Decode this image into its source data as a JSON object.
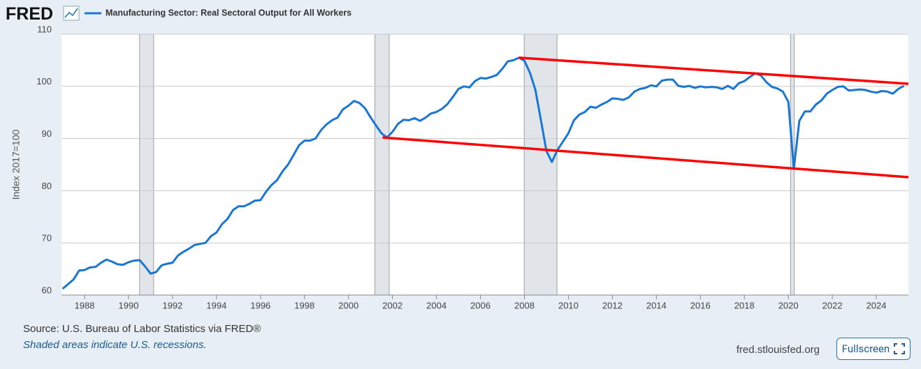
{
  "logo": "FRED",
  "chart_data": {
    "type": "line",
    "title": "Manufacturing Sector: Real Sectoral Output for All Workers",
    "y_label": "Index 2017=100",
    "xlim": [
      1986.95,
      2025.46
    ],
    "ylim": [
      60,
      110
    ],
    "xticks": [
      1988,
      1990,
      1992,
      1994,
      1996,
      1998,
      2000,
      2002,
      2004,
      2006,
      2008,
      2010,
      2012,
      2014,
      2016,
      2018,
      2020,
      2022,
      2024
    ],
    "yticks": [
      60,
      70,
      80,
      90,
      100,
      110
    ],
    "grid": true,
    "recessions": [
      [
        1990.5,
        1991.14
      ],
      [
        2001.2,
        2001.85
      ],
      [
        2007.99,
        2009.48
      ],
      [
        2020.1,
        2020.27
      ]
    ],
    "series": [
      {
        "name": "Manufacturing Sector: Real Sectoral Output for All Workers",
        "color": "#1976d2",
        "x": [
          1987.0,
          1987.5,
          1987.75,
          1988.0,
          1988.25,
          1988.5,
          1988.75,
          1989.0,
          1989.25,
          1989.5,
          1989.75,
          1990.0,
          1990.25,
          1990.5,
          1990.75,
          1991.0,
          1991.25,
          1991.5,
          1991.75,
          1992.0,
          1992.25,
          1992.5,
          1992.75,
          1993.0,
          1993.25,
          1993.5,
          1993.75,
          1994.0,
          1994.25,
          1994.5,
          1994.75,
          1995.0,
          1995.25,
          1995.5,
          1995.75,
          1996.0,
          1996.25,
          1996.5,
          1996.75,
          1997.0,
          1997.25,
          1997.5,
          1997.75,
          1998.0,
          1998.25,
          1998.5,
          1998.75,
          1999.0,
          1999.25,
          1999.5,
          1999.75,
          2000.0,
          2000.25,
          2000.5,
          2000.75,
          2001.0,
          2001.25,
          2001.5,
          2001.75,
          2002.0,
          2002.25,
          2002.5,
          2002.75,
          2003.0,
          2003.25,
          2003.5,
          2003.75,
          2004.0,
          2004.25,
          2004.5,
          2004.75,
          2005.0,
          2005.25,
          2005.5,
          2005.75,
          2006.0,
          2006.25,
          2006.5,
          2006.75,
          2007.0,
          2007.25,
          2007.5,
          2007.75,
          2008.0,
          2008.25,
          2008.5,
          2008.75,
          2009.0,
          2009.25,
          2009.5,
          2009.75,
          2010.0,
          2010.25,
          2010.5,
          2010.75,
          2011.0,
          2011.25,
          2011.5,
          2011.75,
          2012.0,
          2012.25,
          2012.5,
          2012.75,
          2013.0,
          2013.25,
          2013.5,
          2013.75,
          2014.0,
          2014.25,
          2014.5,
          2014.75,
          2015.0,
          2015.25,
          2015.5,
          2015.75,
          2016.0,
          2016.25,
          2016.5,
          2016.75,
          2017.0,
          2017.25,
          2017.5,
          2017.75,
          2018.0,
          2018.25,
          2018.5,
          2018.75,
          2019.0,
          2019.25,
          2019.5,
          2019.75,
          2020.0,
          2020.25,
          2020.5,
          2020.75,
          2021.0,
          2021.25,
          2021.5,
          2021.75,
          2022.0,
          2022.25,
          2022.5,
          2022.75,
          2023.0,
          2023.25,
          2023.5,
          2023.75,
          2024.0,
          2024.25,
          2024.5,
          2024.75,
          2025.0,
          2025.25
        ],
        "values": [
          61.2,
          63,
          64.7,
          64.8,
          65.3,
          65.4,
          66.2,
          66.8,
          66.4,
          65.9,
          65.8,
          66.3,
          66.6,
          66.7,
          65.5,
          64.1,
          64.4,
          65.7,
          66,
          66.2,
          67.6,
          68.3,
          68.9,
          69.6,
          69.8,
          70,
          71.3,
          72,
          73.6,
          74.6,
          76.3,
          77,
          77,
          77.5,
          78.1,
          78.2,
          79.8,
          81.1,
          82,
          83.7,
          85,
          86.8,
          88.7,
          89.6,
          89.6,
          90,
          91.6,
          92.7,
          93.5,
          94,
          95.6,
          96.3,
          97.2,
          96.8,
          95.8,
          94.1,
          92.5,
          91,
          90.2,
          91.3,
          92.8,
          93.6,
          93.5,
          93.9,
          93.4,
          94,
          94.8,
          95.1,
          95.7,
          96.6,
          98,
          99.5,
          100,
          99.8,
          101,
          101.6,
          101.5,
          101.8,
          102.2,
          103.4,
          104.8,
          105,
          105.5,
          104.9,
          102.6,
          99.3,
          93.5,
          87.6,
          85.5,
          87.8,
          89.4,
          91,
          93.5,
          94.6,
          95.1,
          96.1,
          95.9,
          96.5,
          97,
          97.7,
          97.6,
          97.4,
          97.9,
          99,
          99.5,
          99.7,
          100.2,
          100,
          101.1,
          101.3,
          101.3,
          100.1,
          99.9,
          100.1,
          99.7,
          100,
          99.8,
          99.9,
          99.8,
          99.5,
          100.1,
          99.5,
          100.6,
          101,
          101.8,
          102.5,
          102.1,
          100.8,
          99.9,
          99.6,
          99,
          97,
          84.2,
          93.4,
          95.2,
          95.2,
          96.5,
          97.3,
          98.6,
          99.3,
          99.9,
          100,
          99.2,
          99.3,
          99.4,
          99.3,
          99,
          98.8,
          99.1,
          99,
          98.6,
          99.5,
          100.1
        ]
      }
    ],
    "trend_lines": [
      {
        "color": "#ff0000",
        "x": [
          2007.75,
          2025.46
        ],
        "values": [
          105.5,
          100.5
        ]
      },
      {
        "color": "#ff0000",
        "x": [
          2001.55,
          2025.46
        ],
        "values": [
          90.2,
          82.6
        ]
      }
    ],
    "source": "Source: U.S. Bureau of Labor Statistics via FRED®",
    "note": "Shaded areas indicate U.S. recessions."
  },
  "footer": {
    "site": "fred.stlouisfed.org",
    "button": "Fullscreen"
  }
}
